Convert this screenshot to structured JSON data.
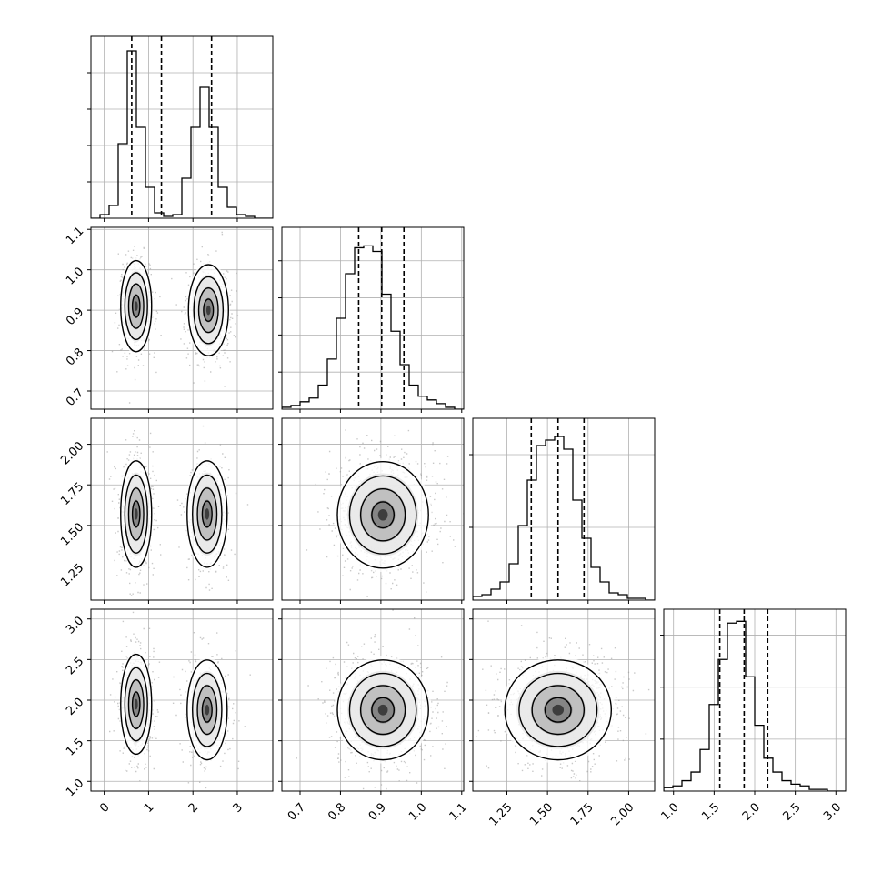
{
  "chart_data": {
    "type": "corner",
    "grid": true,
    "colors": {
      "line": "#000000",
      "grid": "#b0b0b0",
      "points": "#9a9a9a"
    },
    "params": [
      {
        "range": [
          -0.3,
          3.8
        ],
        "ticks": [
          0,
          1,
          2,
          3
        ],
        "tick_labels": [
          "0",
          "1",
          "2",
          "3"
        ],
        "quantiles": [
          0.62,
          1.29,
          2.42
        ]
      },
      {
        "range": [
          0.655,
          1.105
        ],
        "ticks": [
          0.7,
          0.8,
          0.9,
          1.0,
          1.1
        ],
        "tick_labels": [
          "0.7",
          "0.8",
          "0.9",
          "1.0",
          "1.1"
        ],
        "quantiles": [
          0.845,
          0.902,
          0.957
        ]
      },
      {
        "range": [
          1.04,
          2.16
        ],
        "ticks": [
          1.25,
          1.5,
          1.75,
          2.0
        ],
        "tick_labels": [
          "1.25",
          "1.50",
          "1.75",
          "2.00"
        ],
        "quantiles": [
          1.4,
          1.565,
          1.725
        ]
      },
      {
        "range": [
          0.88,
          3.12
        ],
        "ticks": [
          1.0,
          1.5,
          2.0,
          2.5,
          3.0
        ],
        "tick_labels": [
          "1.0",
          "1.5",
          "2.0",
          "2.5",
          "3.0"
        ],
        "quantiles": [
          1.57,
          1.87,
          2.16
        ]
      }
    ],
    "histograms": [
      {
        "edges_start": -0.3,
        "bin_width": 0.205,
        "counts": [
          0,
          0.02,
          0.07,
          0.41,
          0.92,
          0.5,
          0.17,
          0.03,
          0.01,
          0.02,
          0.22,
          0.5,
          0.72,
          0.5,
          0.17,
          0.06,
          0.02,
          0.01,
          0,
          0
        ],
        "ylim": [
          0,
          1.0
        ],
        "yticks": [
          0.2,
          0.4,
          0.6,
          0.8
        ]
      },
      {
        "edges_start": 0.655,
        "bin_width": 0.0225,
        "counts": [
          0.01,
          0.02,
          0.04,
          0.06,
          0.13,
          0.27,
          0.49,
          0.73,
          0.87,
          0.88,
          0.85,
          0.62,
          0.42,
          0.24,
          0.13,
          0.07,
          0.05,
          0.03,
          0.01,
          0
        ],
        "ylim": [
          0,
          0.98
        ],
        "yticks": [
          0.2,
          0.4,
          0.6,
          0.8
        ]
      },
      {
        "edges_start": 1.04,
        "bin_width": 0.056,
        "counts": [
          0.02,
          0.03,
          0.06,
          0.1,
          0.2,
          0.41,
          0.66,
          0.85,
          0.88,
          0.9,
          0.83,
          0.55,
          0.34,
          0.18,
          0.1,
          0.04,
          0.03,
          0.01,
          0.01,
          0
        ],
        "ylim": [
          0,
          1.0
        ],
        "yticks": [
          0.4,
          0.8
        ]
      },
      {
        "edges_start": 0.88,
        "bin_width": 0.112,
        "counts": [
          0.02,
          0.03,
          0.06,
          0.11,
          0.24,
          0.5,
          0.76,
          0.97,
          0.98,
          0.66,
          0.38,
          0.19,
          0.11,
          0.06,
          0.04,
          0.03,
          0.01,
          0.01,
          0,
          0
        ],
        "ylim": [
          0,
          1.05
        ],
        "yticks": [
          0.3,
          0.6,
          0.9
        ]
      }
    ],
    "pairs": [
      {
        "x": 0,
        "y": 1,
        "modes": [
          {
            "mx": 0.72,
            "my": 0.91,
            "sx": 0.17,
            "sy": 0.055,
            "w": 0.55
          },
          {
            "mx": 2.35,
            "my": 0.9,
            "sx": 0.22,
            "sy": 0.055,
            "w": 0.45
          }
        ]
      },
      {
        "x": 0,
        "y": 2,
        "modes": [
          {
            "mx": 0.72,
            "my": 1.57,
            "sx": 0.17,
            "sy": 0.16,
            "w": 0.55
          },
          {
            "mx": 2.32,
            "my": 1.57,
            "sx": 0.22,
            "sy": 0.16,
            "w": 0.45
          }
        ]
      },
      {
        "x": 0,
        "y": 3,
        "modes": [
          {
            "mx": 0.72,
            "my": 1.95,
            "sx": 0.17,
            "sy": 0.3,
            "w": 0.55
          },
          {
            "mx": 2.32,
            "my": 1.88,
            "sx": 0.22,
            "sy": 0.3,
            "w": 0.45
          }
        ]
      },
      {
        "x": 1,
        "y": 2,
        "modes": [
          {
            "mx": 0.905,
            "my": 1.565,
            "sx": 0.055,
            "sy": 0.16,
            "w": 1.0
          }
        ]
      },
      {
        "x": 1,
        "y": 3,
        "modes": [
          {
            "mx": 0.905,
            "my": 1.88,
            "sx": 0.055,
            "sy": 0.3,
            "w": 1.0
          }
        ]
      },
      {
        "x": 2,
        "y": 3,
        "modes": [
          {
            "mx": 1.565,
            "my": 1.88,
            "sx": 0.16,
            "sy": 0.3,
            "w": 1.0
          }
        ]
      }
    ]
  }
}
